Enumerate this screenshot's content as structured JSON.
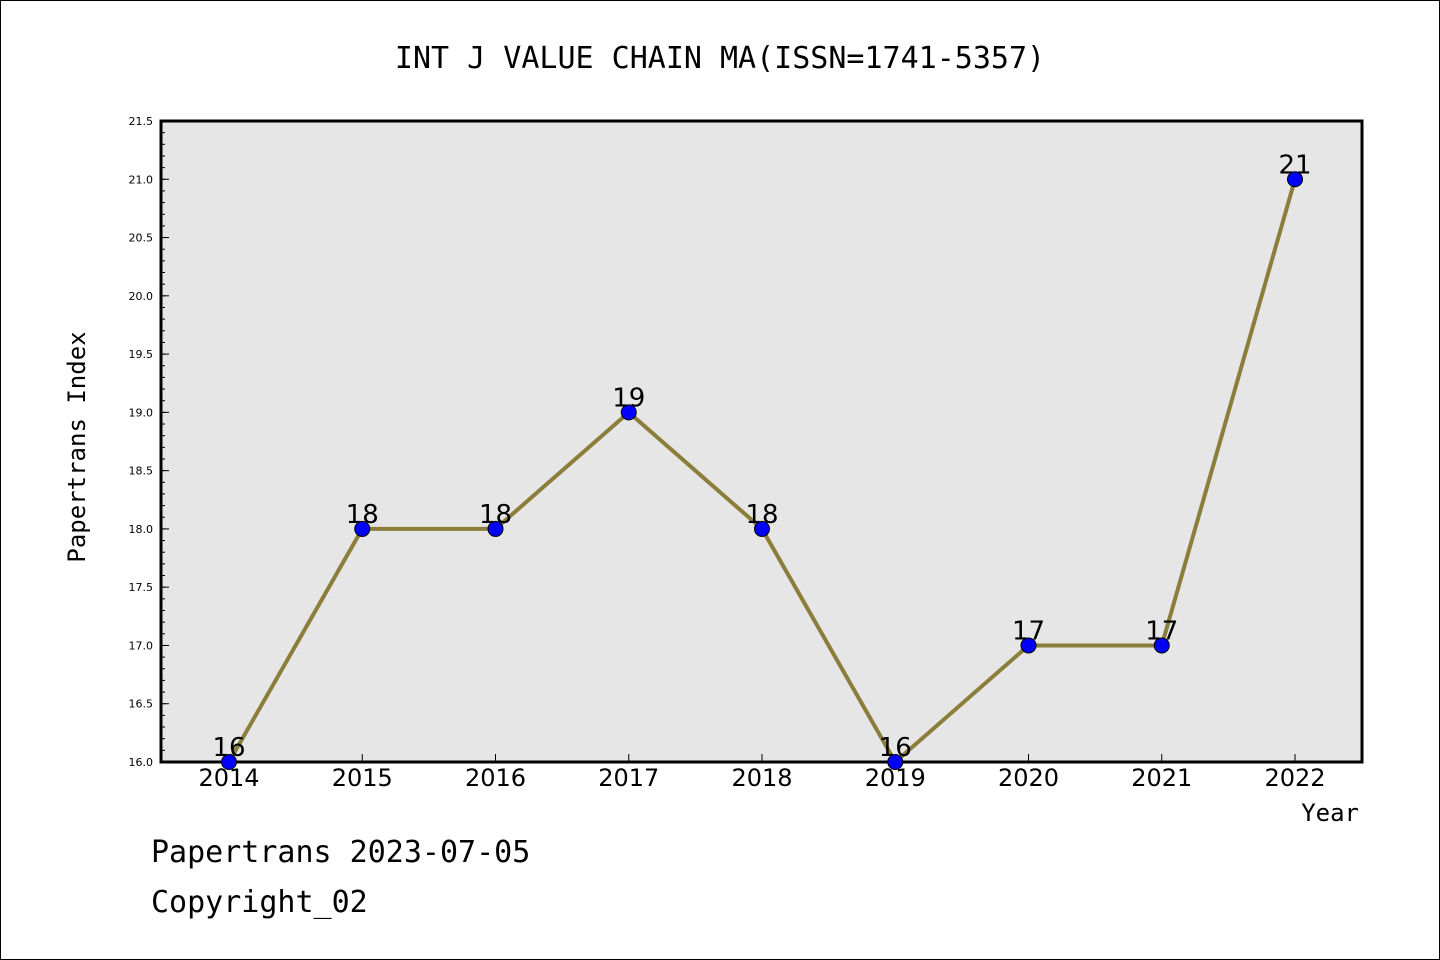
{
  "chart_data": {
    "type": "line",
    "title": "INT J VALUE CHAIN MA(ISSN=1741-5357)",
    "xlabel": "Year",
    "ylabel": "Papertrans Index",
    "categories": [
      "2014",
      "2015",
      "2016",
      "2017",
      "2018",
      "2019",
      "2020",
      "2021",
      "2022"
    ],
    "series": [
      {
        "values": [
          16,
          18,
          18,
          19,
          18,
          16,
          17,
          17,
          21
        ]
      }
    ],
    "data_labels": [
      "16",
      "18",
      "18",
      "19",
      "18",
      "16",
      "17",
      "17",
      "21"
    ],
    "ylim": [
      16.0,
      21.5
    ],
    "yticks": [
      "16.0",
      "16.5",
      "17.0",
      "17.5",
      "18.0",
      "18.5",
      "19.0",
      "19.5",
      "20.0",
      "20.5",
      "21.0",
      "21.5"
    ],
    "grid": false,
    "colors": {
      "line": "#8b7d3a",
      "marker": "#0000ff",
      "plot_background": "#e6e6e6"
    }
  },
  "footer": {
    "line1": "Papertrans 2023-07-05",
    "line2": "Copyright_02"
  }
}
